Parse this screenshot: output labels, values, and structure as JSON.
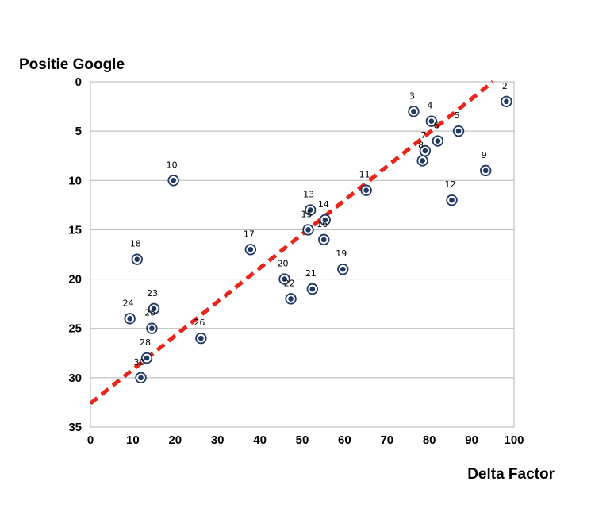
{
  "chart_data": {
    "type": "scatter",
    "title": "",
    "xlabel": "Delta Factor",
    "ylabel": "Positie Google",
    "xlim": [
      0,
      100
    ],
    "ylim": [
      0,
      35
    ],
    "y_inverted": true,
    "xticks": [
      0,
      10,
      20,
      30,
      40,
      50,
      60,
      70,
      80,
      90,
      100
    ],
    "yticks": [
      0,
      5,
      10,
      15,
      20,
      25,
      30,
      35
    ],
    "grid": true,
    "points": [
      {
        "label": "2",
        "x": 98.2,
        "y": 2
      },
      {
        "label": "3",
        "x": 76.3,
        "y": 3
      },
      {
        "label": "4",
        "x": 80.5,
        "y": 4
      },
      {
        "label": "5",
        "x": 86.9,
        "y": 5
      },
      {
        "label": "6",
        "x": 82.0,
        "y": 6
      },
      {
        "label": "7",
        "x": 79.0,
        "y": 7
      },
      {
        "label": "8",
        "x": 78.4,
        "y": 8
      },
      {
        "label": "9",
        "x": 93.3,
        "y": 9
      },
      {
        "label": "10",
        "x": 19.6,
        "y": 10
      },
      {
        "label": "11",
        "x": 65.1,
        "y": 11
      },
      {
        "label": "12",
        "x": 85.3,
        "y": 12
      },
      {
        "label": "13",
        "x": 51.9,
        "y": 13
      },
      {
        "label": "14",
        "x": 55.4,
        "y": 14
      },
      {
        "label": "15",
        "x": 51.4,
        "y": 15
      },
      {
        "label": "16",
        "x": 55.1,
        "y": 16
      },
      {
        "label": "17",
        "x": 37.8,
        "y": 17
      },
      {
        "label": "18",
        "x": 11.0,
        "y": 18
      },
      {
        "label": "19",
        "x": 59.6,
        "y": 19
      },
      {
        "label": "20",
        "x": 45.8,
        "y": 20
      },
      {
        "label": "21",
        "x": 52.4,
        "y": 21
      },
      {
        "label": "22",
        "x": 47.3,
        "y": 22
      },
      {
        "label": "23",
        "x": 15.0,
        "y": 23
      },
      {
        "label": "24",
        "x": 9.3,
        "y": 24
      },
      {
        "label": "25",
        "x": 14.5,
        "y": 25
      },
      {
        "label": "26",
        "x": 26.1,
        "y": 26
      },
      {
        "label": "28",
        "x": 13.3,
        "y": 28
      },
      {
        "label": "30",
        "x": 11.9,
        "y": 30
      }
    ],
    "trendline": {
      "style": "dashed",
      "color": "#e8241b",
      "x": [
        0,
        95
      ],
      "y": [
        32.6,
        0
      ]
    },
    "marker_color": "#1f3864"
  }
}
